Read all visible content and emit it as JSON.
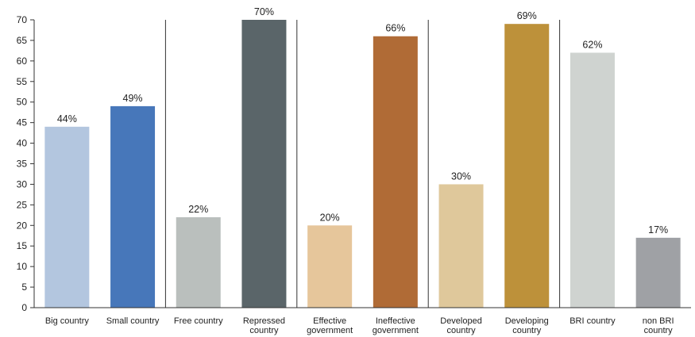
{
  "chart_data": {
    "type": "bar",
    "categories": [
      [
        "Big country"
      ],
      [
        "Small country"
      ],
      [
        "Free country"
      ],
      [
        "Repressed",
        "country"
      ],
      [
        "Effective",
        "government"
      ],
      [
        "Ineffective",
        "government"
      ],
      [
        "Developed",
        "country"
      ],
      [
        "Developing",
        "country"
      ],
      [
        "BRI country"
      ],
      [
        "non BRI",
        "country"
      ]
    ],
    "values": [
      44,
      49,
      22,
      70,
      20,
      66,
      30,
      69,
      62,
      17
    ],
    "value_labels": [
      "44%",
      "49%",
      "22%",
      "70%",
      "20%",
      "66%",
      "30%",
      "69%",
      "62%",
      "17%"
    ],
    "colors": [
      "#b3c6df",
      "#4777ba",
      "#babfbd",
      "#5a6569",
      "#e6c69b",
      "#b06b36",
      "#dfc89b",
      "#bd913a",
      "#cfd3d0",
      "#9fa1a5"
    ],
    "ylim": [
      0,
      70
    ],
    "yticks": [
      0,
      5,
      10,
      15,
      20,
      25,
      30,
      35,
      40,
      45,
      50,
      55,
      60,
      65,
      70
    ],
    "group_dividers_after": [
      1,
      3,
      5,
      7
    ],
    "title": "",
    "xlabel": "",
    "ylabel": ""
  }
}
